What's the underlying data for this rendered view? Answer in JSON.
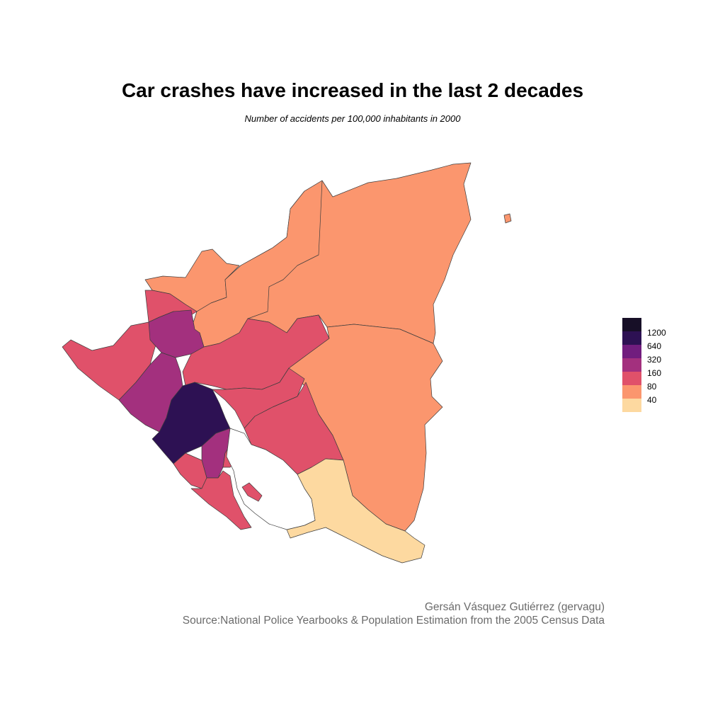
{
  "title": "Car crashes have increased in the last 2 decades",
  "subtitle": "Number of accidents per 100,000 inhabitants in 2000",
  "legend": {
    "labels": [
      "1200",
      "640",
      "320",
      "160",
      "80",
      "40"
    ],
    "colors": [
      "#170f27",
      "#2d1153",
      "#711d7e",
      "#a3307e",
      "#e0516a",
      "#fb966e",
      "#fdd9a0"
    ]
  },
  "caption": {
    "author": "Gersán Vásquez Gutiérrez (gervagu)",
    "source": "Source:National Police Yearbooks & Population Estimation from the 2005 Census Data"
  }
}
